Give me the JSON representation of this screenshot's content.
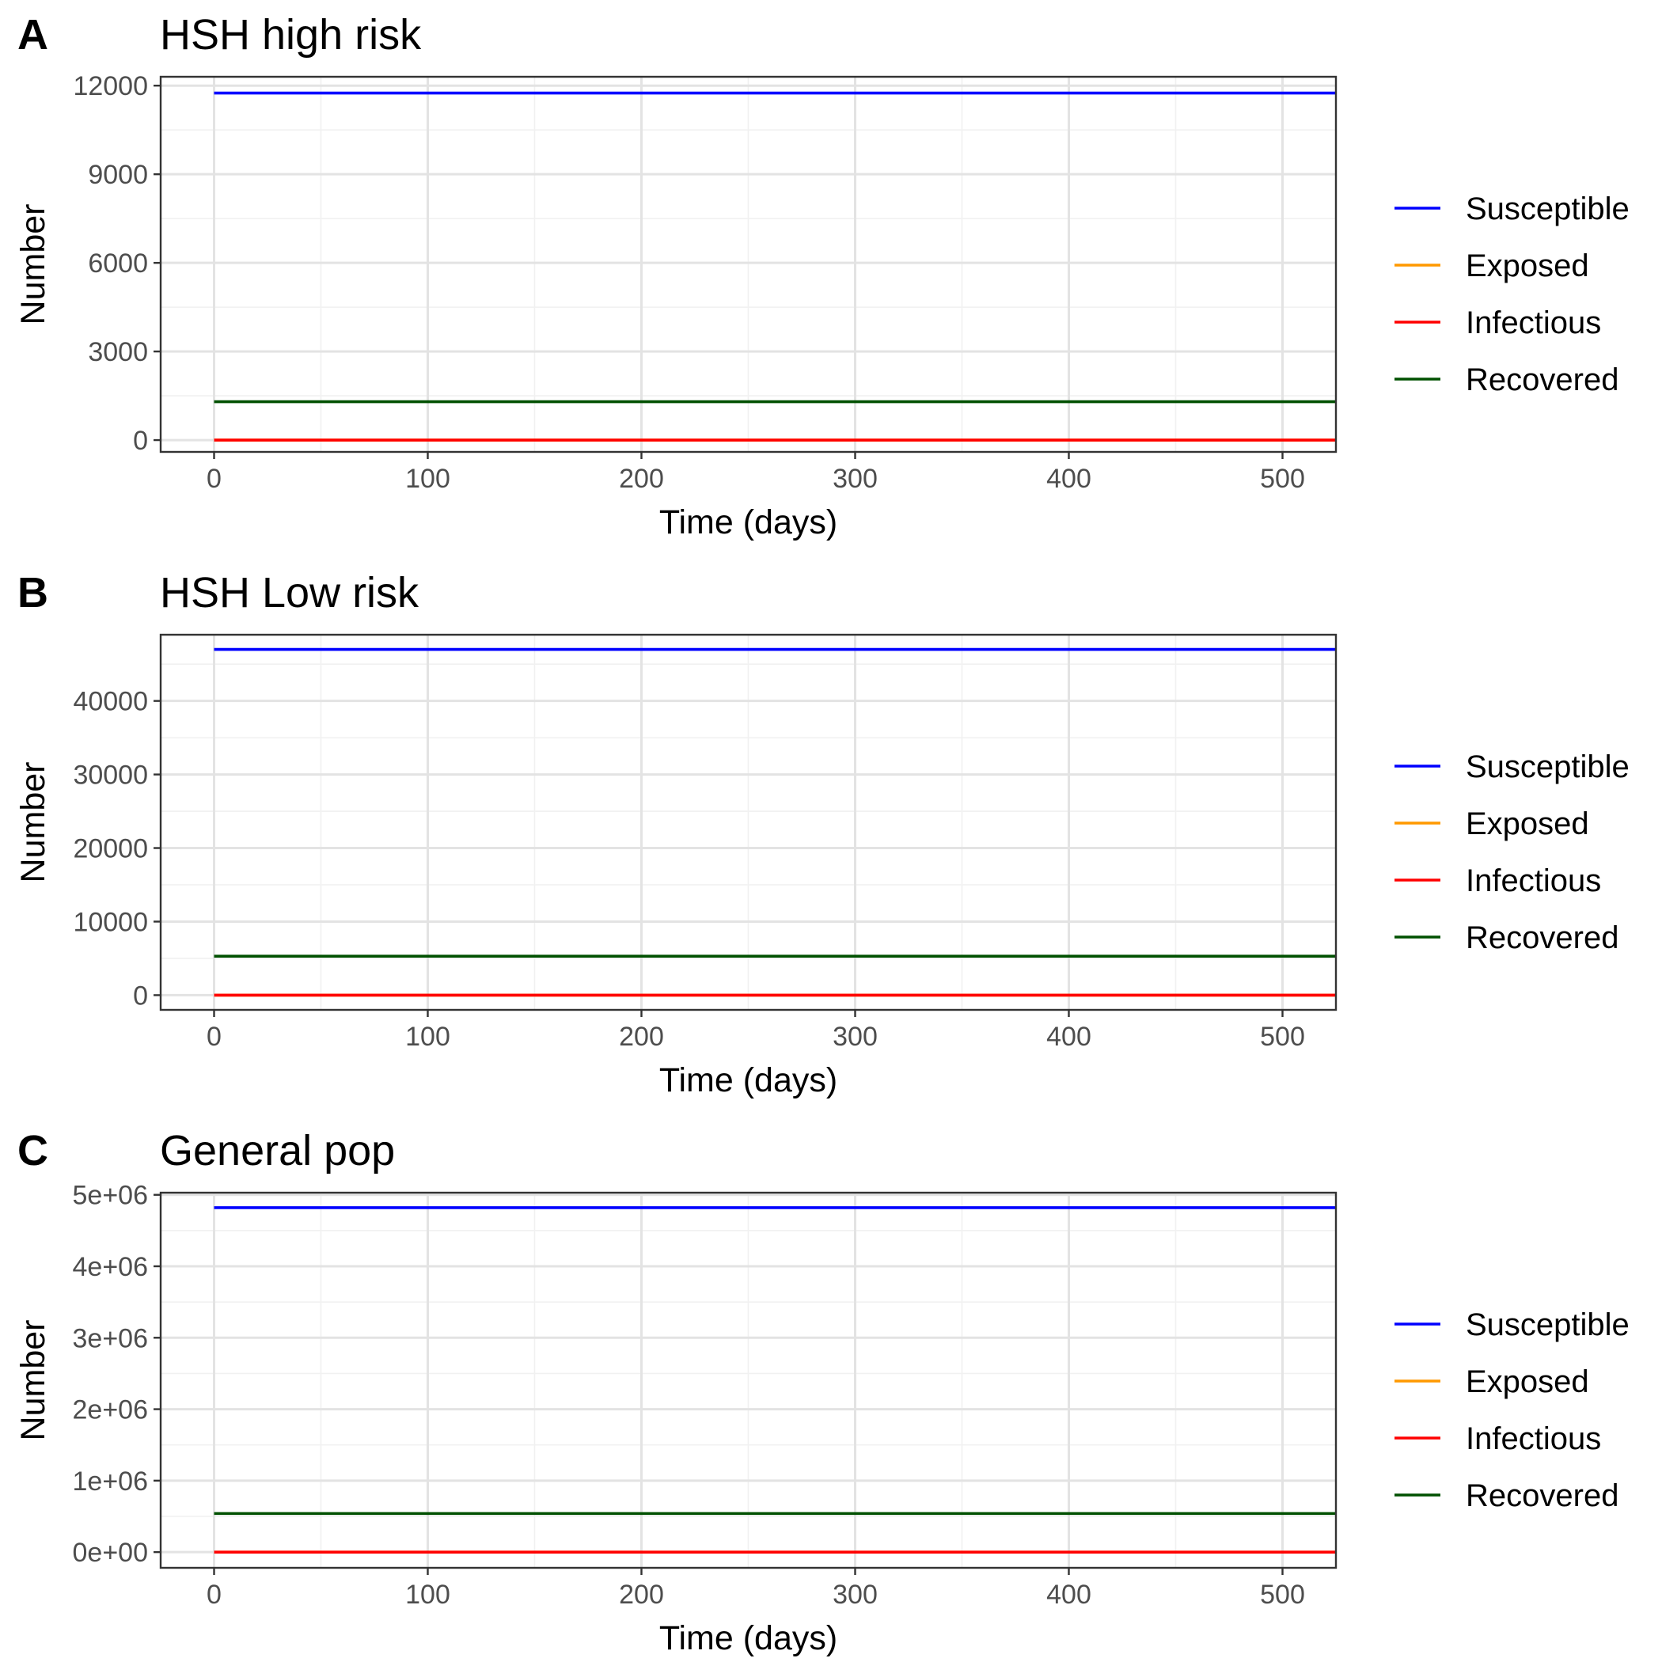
{
  "chart_data": [
    {
      "type": "line",
      "panel": "A",
      "title": "HSH high risk",
      "xlabel": "Time (days)",
      "ylabel": "Number",
      "xlim": [
        -25,
        525
      ],
      "ylim": [
        -400,
        12300
      ],
      "x_ticks": [
        0,
        100,
        200,
        300,
        400,
        500
      ],
      "x_tick_labels": [
        "0",
        "100",
        "200",
        "300",
        "400",
        "500"
      ],
      "y_ticks": [
        0,
        3000,
        6000,
        9000,
        12000
      ],
      "y_tick_labels": [
        "0",
        "3000",
        "6000",
        "9000",
        "12000"
      ],
      "grid": true,
      "legend_position": "right",
      "x": [
        0,
        525
      ],
      "series": [
        {
          "name": "Susceptible",
          "color": "#0000FF",
          "values": [
            11750,
            11750
          ]
        },
        {
          "name": "Exposed",
          "color": "#FF9900",
          "values": [
            0,
            0
          ]
        },
        {
          "name": "Infectious",
          "color": "#FF0000",
          "values": [
            0,
            0
          ]
        },
        {
          "name": "Recovered",
          "color": "#005000",
          "values": [
            1300,
            1300
          ]
        }
      ]
    },
    {
      "type": "line",
      "panel": "B",
      "title": "HSH Low risk",
      "xlabel": "Time (days)",
      "ylabel": "Number",
      "xlim": [
        -25,
        525
      ],
      "ylim": [
        -2000,
        49000
      ],
      "x_ticks": [
        0,
        100,
        200,
        300,
        400,
        500
      ],
      "x_tick_labels": [
        "0",
        "100",
        "200",
        "300",
        "400",
        "500"
      ],
      "y_ticks": [
        0,
        10000,
        20000,
        30000,
        40000
      ],
      "y_tick_labels": [
        "0",
        "10000",
        "20000",
        "30000",
        "40000"
      ],
      "grid": true,
      "legend_position": "right",
      "x": [
        0,
        525
      ],
      "series": [
        {
          "name": "Susceptible",
          "color": "#0000FF",
          "values": [
            47000,
            47000
          ]
        },
        {
          "name": "Exposed",
          "color": "#FF9900",
          "values": [
            0,
            0
          ]
        },
        {
          "name": "Infectious",
          "color": "#FF0000",
          "values": [
            0,
            0
          ]
        },
        {
          "name": "Recovered",
          "color": "#005000",
          "values": [
            5300,
            5300
          ]
        }
      ]
    },
    {
      "type": "line",
      "panel": "C",
      "title": "General pop",
      "xlabel": "Time (days)",
      "ylabel": "Number",
      "xlim": [
        -25,
        525
      ],
      "ylim": [
        -220000,
        5030000
      ],
      "x_ticks": [
        0,
        100,
        200,
        300,
        400,
        500
      ],
      "x_tick_labels": [
        "0",
        "100",
        "200",
        "300",
        "400",
        "500"
      ],
      "y_ticks": [
        0,
        1000000,
        2000000,
        3000000,
        4000000,
        5000000
      ],
      "y_tick_labels": [
        "0e+00",
        "1e+06",
        "2e+06",
        "3e+06",
        "4e+06",
        "5e+06"
      ],
      "grid": true,
      "legend_position": "right",
      "x": [
        0,
        525
      ],
      "series": [
        {
          "name": "Susceptible",
          "color": "#0000FF",
          "values": [
            4820000,
            4820000
          ]
        },
        {
          "name": "Exposed",
          "color": "#FF9900",
          "values": [
            0,
            0
          ]
        },
        {
          "name": "Infectious",
          "color": "#FF0000",
          "values": [
            0,
            0
          ]
        },
        {
          "name": "Recovered",
          "color": "#005000",
          "values": [
            540000,
            540000
          ]
        }
      ]
    }
  ]
}
